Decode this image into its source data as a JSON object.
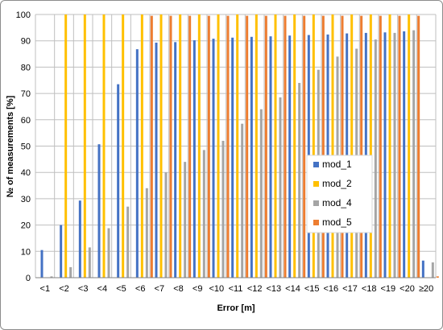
{
  "chart_data": {
    "type": "bar",
    "title": "",
    "xlabel": "Error [m]",
    "ylabel": "№ of measurements [%]",
    "ylim": [
      0,
      100
    ],
    "yticks": [
      0,
      10,
      20,
      30,
      40,
      50,
      60,
      70,
      80,
      90,
      100
    ],
    "grid": true,
    "legend_position": "right",
    "categories": [
      "<1",
      "<2",
      "<3",
      "<4",
      "<5",
      "<6",
      "<7",
      "<8",
      "<9",
      "<10",
      "<11",
      "<12",
      "<13",
      "<14",
      "<15",
      "<16",
      "<17",
      "<18",
      "<19",
      "<20",
      "≥20"
    ],
    "series": [
      {
        "name": "mod_1",
        "color": "#4472c4",
        "values": [
          10.5,
          20,
          29.3,
          50.7,
          73.5,
          86.8,
          89.3,
          89.5,
          90.2,
          90.8,
          91.2,
          91.5,
          91.7,
          92,
          92.2,
          92.4,
          92.8,
          93,
          93.2,
          93.6,
          6.5
        ]
      },
      {
        "name": "mod_2",
        "color": "#ffc000",
        "values": [
          0,
          100,
          100,
          100,
          100,
          100,
          100,
          100,
          100,
          100,
          100,
          100,
          100,
          100,
          100,
          100,
          100,
          100,
          100,
          100,
          0
        ]
      },
      {
        "name": "mod_4",
        "color": "#a5a5a5",
        "values": [
          0.5,
          4,
          11.5,
          18.8,
          27,
          34,
          40,
          44,
          48.5,
          52,
          58.5,
          64,
          68.5,
          74,
          79,
          84,
          87,
          90.5,
          93,
          94,
          5.8
        ]
      },
      {
        "name": "mod_5",
        "color": "#ed7d31",
        "values": [
          0,
          0,
          0,
          0,
          0,
          99.5,
          99.5,
          99.5,
          99.5,
          99.5,
          99.5,
          99.5,
          99.5,
          99.5,
          99.5,
          99.5,
          99.5,
          99.5,
          99.5,
          99.5,
          0.5
        ]
      }
    ]
  }
}
